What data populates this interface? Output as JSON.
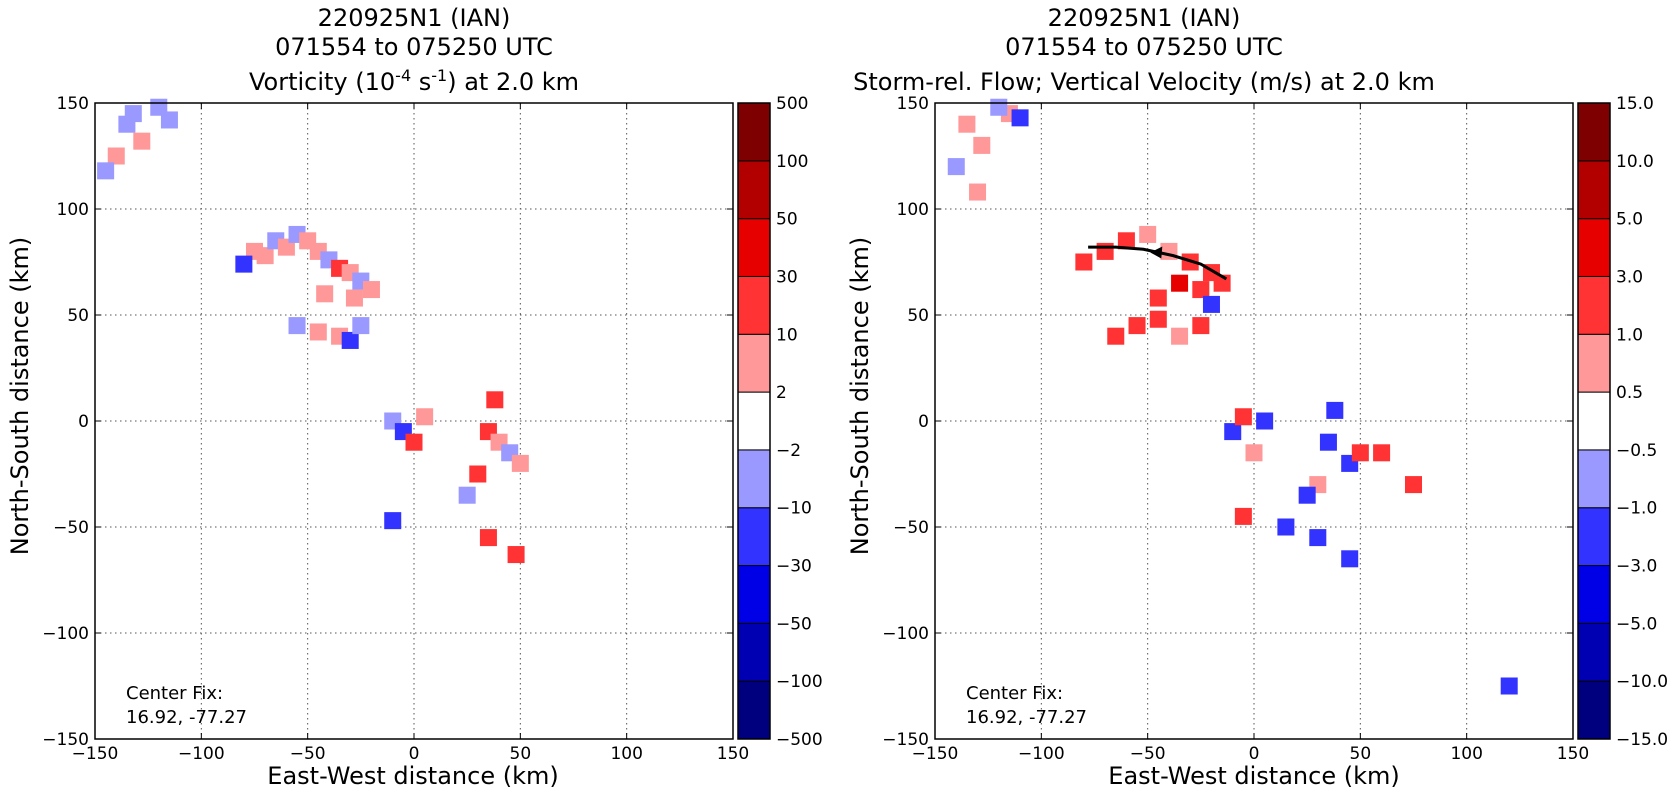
{
  "chart_data": [
    {
      "type": "heatmap",
      "title_lines": [
        "220925N1 (IAN)",
        "071554 to 075250 UTC"
      ],
      "title_field": {
        "prefix": "Vorticity (10",
        "exp1": "-4",
        "mid": " s",
        "exp2": "-1",
        "suffix": ") at 2.0 km"
      },
      "xlabel": "East-West distance (km)",
      "ylabel": "North-South distance (km)",
      "xlim": [
        -150,
        150
      ],
      "ylim": [
        -150,
        150
      ],
      "xticks": [
        -150,
        -100,
        -50,
        0,
        50,
        100,
        150
      ],
      "yticks": [
        -150,
        -100,
        -50,
        0,
        50,
        100,
        150
      ],
      "xtick_labels": [
        "−150",
        "−100",
        "−50",
        "0",
        "50",
        "100",
        "150"
      ],
      "ytick_labels": [
        "−150",
        "−100",
        "−50",
        "0",
        "50",
        "100",
        "150"
      ],
      "grid": true,
      "colorbar": {
        "levels": [
          "−500",
          "−100",
          "−50",
          "−30",
          "−10",
          "−2",
          "2",
          "10",
          "30",
          "50",
          "100",
          "500"
        ],
        "colors": [
          "#00007f",
          "#0000b2",
          "#0000e6",
          "#3333ff",
          "#9999ff",
          "#ffffff",
          "#ff9999",
          "#ff3333",
          "#e60000",
          "#b20000",
          "#7f0000"
        ]
      },
      "annotation": [
        "Center Fix:",
        "16.92, -77.27"
      ],
      "cells": [
        [
          -135,
          140,
          2,
          "#9999ff"
        ],
        [
          -128,
          132,
          2,
          "#ff9999"
        ],
        [
          -140,
          125,
          2,
          "#ff9999"
        ],
        [
          -145,
          118,
          2,
          "#9999ff"
        ],
        [
          -132,
          145,
          2,
          "#9999ff"
        ],
        [
          -115,
          142,
          2,
          "#9999ff"
        ],
        [
          -120,
          148,
          2,
          "#9999ff"
        ],
        [
          -75,
          80,
          2,
          "#ff9999"
        ],
        [
          -70,
          78,
          2,
          "#ff9999"
        ],
        [
          -65,
          85,
          2,
          "#9999ff"
        ],
        [
          -60,
          82,
          2,
          "#ff9999"
        ],
        [
          -55,
          88,
          2,
          "#9999ff"
        ],
        [
          -50,
          85,
          2,
          "#ff9999"
        ],
        [
          -45,
          80,
          2,
          "#ff9999"
        ],
        [
          -40,
          76,
          2,
          "#9999ff"
        ],
        [
          -35,
          72,
          2,
          "#ff3333"
        ],
        [
          -30,
          70,
          2,
          "#ff9999"
        ],
        [
          -25,
          66,
          2,
          "#9999ff"
        ],
        [
          -20,
          62,
          2,
          "#ff9999"
        ],
        [
          -80,
          74,
          2,
          "#3333ff"
        ],
        [
          -42,
          60,
          2,
          "#ff9999"
        ],
        [
          -28,
          58,
          2,
          "#ff9999"
        ],
        [
          -55,
          45,
          2,
          "#9999ff"
        ],
        [
          -45,
          42,
          2,
          "#ff9999"
        ],
        [
          -35,
          40,
          2,
          "#ff9999"
        ],
        [
          -30,
          38,
          2,
          "#3333ff"
        ],
        [
          -25,
          45,
          2,
          "#9999ff"
        ],
        [
          -10,
          0,
          2,
          "#9999ff"
        ],
        [
          -5,
          -5,
          2,
          "#3333ff"
        ],
        [
          0,
          -10,
          2,
          "#ff3333"
        ],
        [
          5,
          2,
          2,
          "#ff9999"
        ],
        [
          35,
          -5,
          2,
          "#ff3333"
        ],
        [
          40,
          -10,
          2,
          "#ff9999"
        ],
        [
          45,
          -15,
          2,
          "#9999ff"
        ],
        [
          50,
          -20,
          2,
          "#ff9999"
        ],
        [
          30,
          -25,
          2,
          "#ff3333"
        ],
        [
          25,
          -35,
          2,
          "#9999ff"
        ],
        [
          38,
          10,
          2,
          "#ff3333"
        ],
        [
          35,
          -55,
          2,
          "#ff3333"
        ],
        [
          48,
          -63,
          2,
          "#ff3333"
        ],
        [
          -10,
          -47,
          2,
          "#3333ff"
        ]
      ]
    },
    {
      "type": "heatmap",
      "title_lines": [
        "220925N1 (IAN)",
        "071554 to 075250 UTC",
        "Storm-rel. Flow; Vertical Velocity (m/s) at 2.0 km"
      ],
      "xlabel": "East-West distance (km)",
      "ylabel": "North-South distance (km)",
      "xlim": [
        -150,
        150
      ],
      "ylim": [
        -150,
        150
      ],
      "xticks": [
        -150,
        -100,
        -50,
        0,
        50,
        100,
        150
      ],
      "yticks": [
        -150,
        -100,
        -50,
        0,
        50,
        100,
        150
      ],
      "xtick_labels": [
        "−150",
        "−100",
        "−50",
        "0",
        "50",
        "100",
        "150"
      ],
      "ytick_labels": [
        "−150",
        "−100",
        "−50",
        "0",
        "50",
        "100",
        "150"
      ],
      "grid": true,
      "colorbar": {
        "levels": [
          "−15.0",
          "−10.0",
          "−5.0",
          "−3.0",
          "−1.0",
          "−0.5",
          "0.5",
          "1.0",
          "3.0",
          "5.0",
          "10.0",
          "15.0"
        ],
        "colors": [
          "#00007f",
          "#0000b2",
          "#0000e6",
          "#3333ff",
          "#9999ff",
          "#ffffff",
          "#ff9999",
          "#ff3333",
          "#e60000",
          "#b20000",
          "#7f0000"
        ]
      },
      "annotation": [
        "Center Fix:",
        "16.92, -77.27"
      ],
      "streamline": [
        [
          -13,
          67
        ],
        [
          -25,
          74
        ],
        [
          -38,
          78
        ],
        [
          -52,
          81
        ],
        [
          -65,
          82
        ],
        [
          -78,
          82
        ]
      ],
      "cells": [
        [
          -135,
          140,
          2,
          "#ff9999"
        ],
        [
          -128,
          130,
          2,
          "#ff9999"
        ],
        [
          -140,
          120,
          2,
          "#9999ff"
        ],
        [
          -115,
          145,
          2,
          "#ff9999"
        ],
        [
          -120,
          148,
          2,
          "#9999ff"
        ],
        [
          -110,
          143,
          2,
          "#3333ff"
        ],
        [
          -130,
          108,
          2,
          "#ff9999"
        ],
        [
          -80,
          75,
          2,
          "#ff3333"
        ],
        [
          -70,
          80,
          2,
          "#ff3333"
        ],
        [
          -60,
          85,
          2,
          "#ff3333"
        ],
        [
          -50,
          88,
          2,
          "#ff9999"
        ],
        [
          -40,
          80,
          2,
          "#ff9999"
        ],
        [
          -30,
          75,
          2,
          "#ff3333"
        ],
        [
          -20,
          70,
          2,
          "#ff3333"
        ],
        [
          -15,
          65,
          2,
          "#ff3333"
        ],
        [
          -35,
          65,
          2,
          "#e60000"
        ],
        [
          -25,
          62,
          2,
          "#ff3333"
        ],
        [
          -45,
          58,
          2,
          "#ff3333"
        ],
        [
          -55,
          45,
          2,
          "#ff3333"
        ],
        [
          -45,
          48,
          2,
          "#ff3333"
        ],
        [
          -35,
          40,
          2,
          "#ff9999"
        ],
        [
          -25,
          45,
          2,
          "#ff3333"
        ],
        [
          -65,
          40,
          2,
          "#ff3333"
        ],
        [
          -20,
          55,
          2,
          "#3333ff"
        ],
        [
          -10,
          -5,
          2,
          "#3333ff"
        ],
        [
          0,
          -15,
          2,
          "#ff9999"
        ],
        [
          5,
          0,
          2,
          "#3333ff"
        ],
        [
          -5,
          2,
          2,
          "#ff3333"
        ],
        [
          38,
          5,
          2,
          "#3333ff"
        ],
        [
          35,
          -10,
          2,
          "#3333ff"
        ],
        [
          45,
          -20,
          2,
          "#3333ff"
        ],
        [
          50,
          -15,
          2,
          "#ff3333"
        ],
        [
          30,
          -30,
          2,
          "#ff9999"
        ],
        [
          25,
          -35,
          2,
          "#3333ff"
        ],
        [
          60,
          -15,
          2,
          "#ff3333"
        ],
        [
          75,
          -30,
          2,
          "#ff3333"
        ],
        [
          -5,
          -45,
          2,
          "#ff3333"
        ],
        [
          15,
          -50,
          2,
          "#3333ff"
        ],
        [
          30,
          -55,
          2,
          "#3333ff"
        ],
        [
          45,
          -65,
          2,
          "#3333ff"
        ],
        [
          120,
          -125,
          2,
          "#3333ff"
        ]
      ]
    }
  ]
}
